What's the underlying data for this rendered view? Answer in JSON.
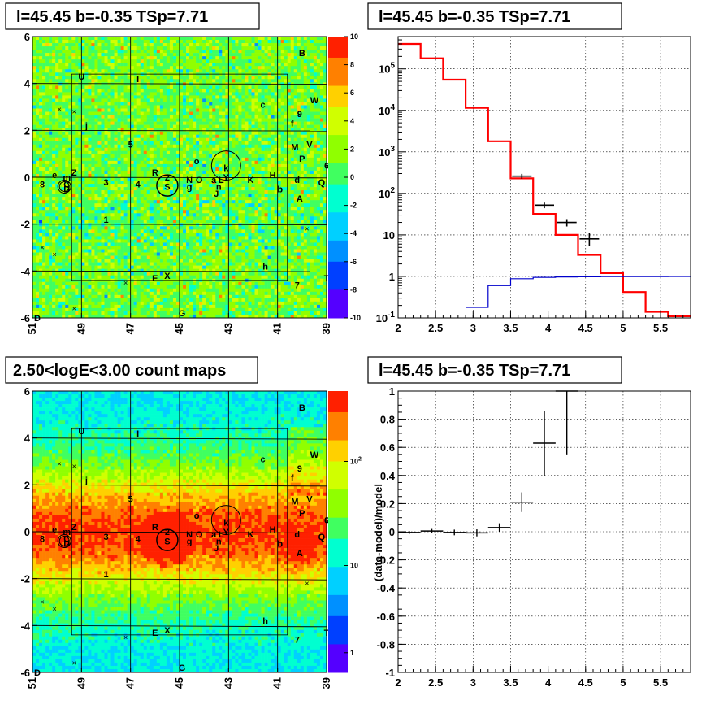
{
  "panels": {
    "map_top_title": "l=45.45 b=-0.35 TSp=7.71",
    "spectrum_title": "l=45.45 b=-0.35 TSp=7.71",
    "map_bottom_title": "2.50<logE<3.00 count maps",
    "residual_title": "l=45.45 b=-0.35 TSp=7.71"
  },
  "chart_data": [
    {
      "id": "residual-map",
      "type": "heatmap",
      "title": "l=45.45 b=-0.35 TSp=7.71",
      "x_ticks": [
        "51",
        "49",
        "47",
        "45",
        "43",
        "41",
        "39"
      ],
      "y_ticks": [
        "6",
        "4",
        "2",
        "0",
        "-2",
        "-4",
        "-6"
      ],
      "xlim": [
        51,
        39
      ],
      "ylim": [
        -6,
        6
      ],
      "colorbar_ticks": [
        "10",
        "8",
        "6",
        "4",
        "2",
        "0",
        "-2",
        "-4",
        "-6",
        "-8",
        "-10"
      ],
      "zlim": [
        -10,
        10
      ],
      "colors": [
        "#5400ff",
        "#0040ff",
        "#0090ff",
        "#00d0ff",
        "#00ffd0",
        "#40ff60",
        "#90ff00",
        "#d0ff00",
        "#ffd000",
        "#ff8000",
        "#ff2000"
      ],
      "sources": [
        {
          "name": "B",
          "l": 40.0,
          "b": 5.3
        },
        {
          "name": "U",
          "l": 49.0,
          "b": 4.3
        },
        {
          "name": "I",
          "l": 46.7,
          "b": 4.2
        },
        {
          "name": "c",
          "l": 41.6,
          "b": 3.1
        },
        {
          "name": "W",
          "l": 39.5,
          "b": 3.3
        },
        {
          "name": "9",
          "l": 40.1,
          "b": 2.7
        },
        {
          "name": "f",
          "l": 40.4,
          "b": 2.3
        },
        {
          "name": "j",
          "l": 48.8,
          "b": 2.2
        },
        {
          "name": "5",
          "l": 47.0,
          "b": 1.4
        },
        {
          "name": "M",
          "l": 40.3,
          "b": 1.3
        },
        {
          "name": "V",
          "l": 39.7,
          "b": 1.4
        },
        {
          "name": "P",
          "l": 40.0,
          "b": 0.8
        },
        {
          "name": "o",
          "l": 44.3,
          "b": 0.7
        },
        {
          "name": "6",
          "l": 39.0,
          "b": 0.5
        },
        {
          "name": "k",
          "l": 43.1,
          "b": 0.4
        },
        {
          "name": "R",
          "l": 46.0,
          "b": 0.2
        },
        {
          "name": "Z",
          "l": 49.3,
          "b": 0.2
        },
        {
          "name": "e",
          "l": 50.1,
          "b": 0.1
        },
        {
          "name": "m",
          "l": 49.6,
          "b": 0.0
        },
        {
          "name": "2",
          "l": 45.5,
          "b": 0.0
        },
        {
          "name": "H",
          "l": 41.2,
          "b": 0.1
        },
        {
          "name": "N",
          "l": 44.6,
          "b": -0.1
        },
        {
          "name": "O",
          "l": 44.2,
          "b": -0.1
        },
        {
          "name": "a",
          "l": 43.6,
          "b": -0.1
        },
        {
          "name": "L",
          "l": 43.3,
          "b": -0.1
        },
        {
          "name": "Y",
          "l": 43.1,
          "b": 0.0
        },
        {
          "name": "K",
          "l": 42.1,
          "b": -0.1
        },
        {
          "name": "d",
          "l": 40.2,
          "b": -0.1
        },
        {
          "name": "Q",
          "l": 39.2,
          "b": -0.2
        },
        {
          "name": "8",
          "l": 50.6,
          "b": -0.3
        },
        {
          "name": "3",
          "l": 48.0,
          "b": -0.2
        },
        {
          "name": "4",
          "l": 46.7,
          "b": -0.3
        },
        {
          "name": "C",
          "l": 49.6,
          "b": -0.3
        },
        {
          "name": "D",
          "l": 49.6,
          "b": -0.5
        },
        {
          "name": "S",
          "l": 45.5,
          "b": -0.4
        },
        {
          "name": "g",
          "l": 44.6,
          "b": -0.4
        },
        {
          "name": "n",
          "l": 43.4,
          "b": -0.4
        },
        {
          "name": "b",
          "l": 40.9,
          "b": -0.5
        },
        {
          "name": "J",
          "l": 43.5,
          "b": -0.7
        },
        {
          "name": "A",
          "l": 40.1,
          "b": -0.9
        },
        {
          "name": "1",
          "l": 48.0,
          "b": -1.8
        },
        {
          "name": "h",
          "l": 41.5,
          "b": -3.8
        },
        {
          "name": "E",
          "l": 46.0,
          "b": -4.3
        },
        {
          "name": "X",
          "l": 45.5,
          "b": -4.2
        },
        {
          "name": "7",
          "l": 40.2,
          "b": -4.6
        },
        {
          "name": "T",
          "l": 39.0,
          "b": -4.3
        },
        {
          "name": "G",
          "l": 44.9,
          "b": -5.8
        },
        {
          "name": "D",
          "l": 50.8,
          "b": -6.0
        }
      ]
    },
    {
      "id": "spectrum",
      "type": "line",
      "title": "l=45.45 b=-0.35 TSp=7.71",
      "xlim": [
        2.0,
        5.9
      ],
      "ylim": [
        0.1,
        600000
      ],
      "yscale": "log",
      "x_ticks": [
        "2",
        "2.5",
        "3",
        "3.5",
        "4",
        "4.5",
        "5",
        "5.5"
      ],
      "y_ticks": [
        "10^-1",
        "1",
        "10",
        "10^2",
        "10^3",
        "10^4",
        "10^5"
      ],
      "series": [
        {
          "color": "#ff0000",
          "edges": [
            2.0,
            2.3,
            2.6,
            2.9,
            3.2,
            3.5,
            3.8,
            4.1,
            4.4,
            4.7,
            5.0,
            5.3,
            5.6,
            5.9
          ],
          "values": [
            400000,
            180000,
            55000,
            11500,
            1800,
            230,
            32,
            10,
            3.3,
            1.2,
            0.42,
            0.14,
            0.11
          ]
        },
        {
          "color": "#0000cc",
          "edges": [
            2.9,
            3.2,
            3.5,
            3.8,
            4.1,
            4.4,
            4.7,
            5.0,
            5.3,
            5.6,
            5.9
          ],
          "values": [
            0.18,
            0.6,
            0.88,
            0.95,
            0.97,
            0.98,
            0.99,
            0.99,
            0.99,
            1.0
          ]
        },
        {
          "color": "#000000",
          "x": [
            3.65,
            3.95,
            4.25,
            4.55
          ],
          "y": [
            260,
            52,
            20,
            8
          ],
          "xerr": 0.13,
          "yerr_low": [
            225,
            44,
            16,
            5.5
          ],
          "yerr_high": [
            295,
            60,
            24,
            11
          ]
        }
      ]
    },
    {
      "id": "count-map",
      "type": "heatmap",
      "title": "2.50<logE<3.00 count maps",
      "x_ticks": [
        "51",
        "49",
        "47",
        "45",
        "43",
        "41",
        "39"
      ],
      "y_ticks": [
        "6",
        "4",
        "2",
        "0",
        "-2",
        "-4",
        "-6"
      ],
      "xlim": [
        51,
        39
      ],
      "ylim": [
        -6,
        6
      ],
      "zscale": "log",
      "colorbar_ticks": [
        "10^2",
        "10",
        "1"
      ],
      "colors": [
        "#5400ff",
        "#0040ff",
        "#0090ff",
        "#00d0ff",
        "#00ffd0",
        "#40ff60",
        "#90ff00",
        "#d0ff00",
        "#ffd000",
        "#ff8000",
        "#ff2000"
      ]
    },
    {
      "id": "residuals",
      "type": "scatter",
      "title": "l=45.45 b=-0.35 TSp=7.71",
      "ylabel": "(data-model)/model",
      "xlim": [
        2.0,
        5.9
      ],
      "ylim": [
        -1,
        1
      ],
      "x_ticks": [
        "2",
        "2.5",
        "3",
        "3.5",
        "4",
        "4.5",
        "5",
        "5.5"
      ],
      "y_ticks": [
        "1",
        "0.8",
        "0.6",
        "0.4",
        "0.2",
        "0",
        "-0.2",
        "-0.4",
        "-0.6",
        "-0.8",
        "-1"
      ],
      "points": {
        "x": [
          2.15,
          2.45,
          2.75,
          3.05,
          3.35,
          3.65,
          3.95,
          4.25
        ],
        "y": [
          -0.005,
          0.005,
          -0.005,
          -0.008,
          0.03,
          0.21,
          0.63,
          1.0
        ],
        "xerr": 0.15,
        "yerr": [
          0.01,
          0.015,
          0.02,
          0.025,
          0.03,
          0.07,
          0.23,
          0.45
        ]
      },
      "marker_color": "#000000"
    }
  ]
}
